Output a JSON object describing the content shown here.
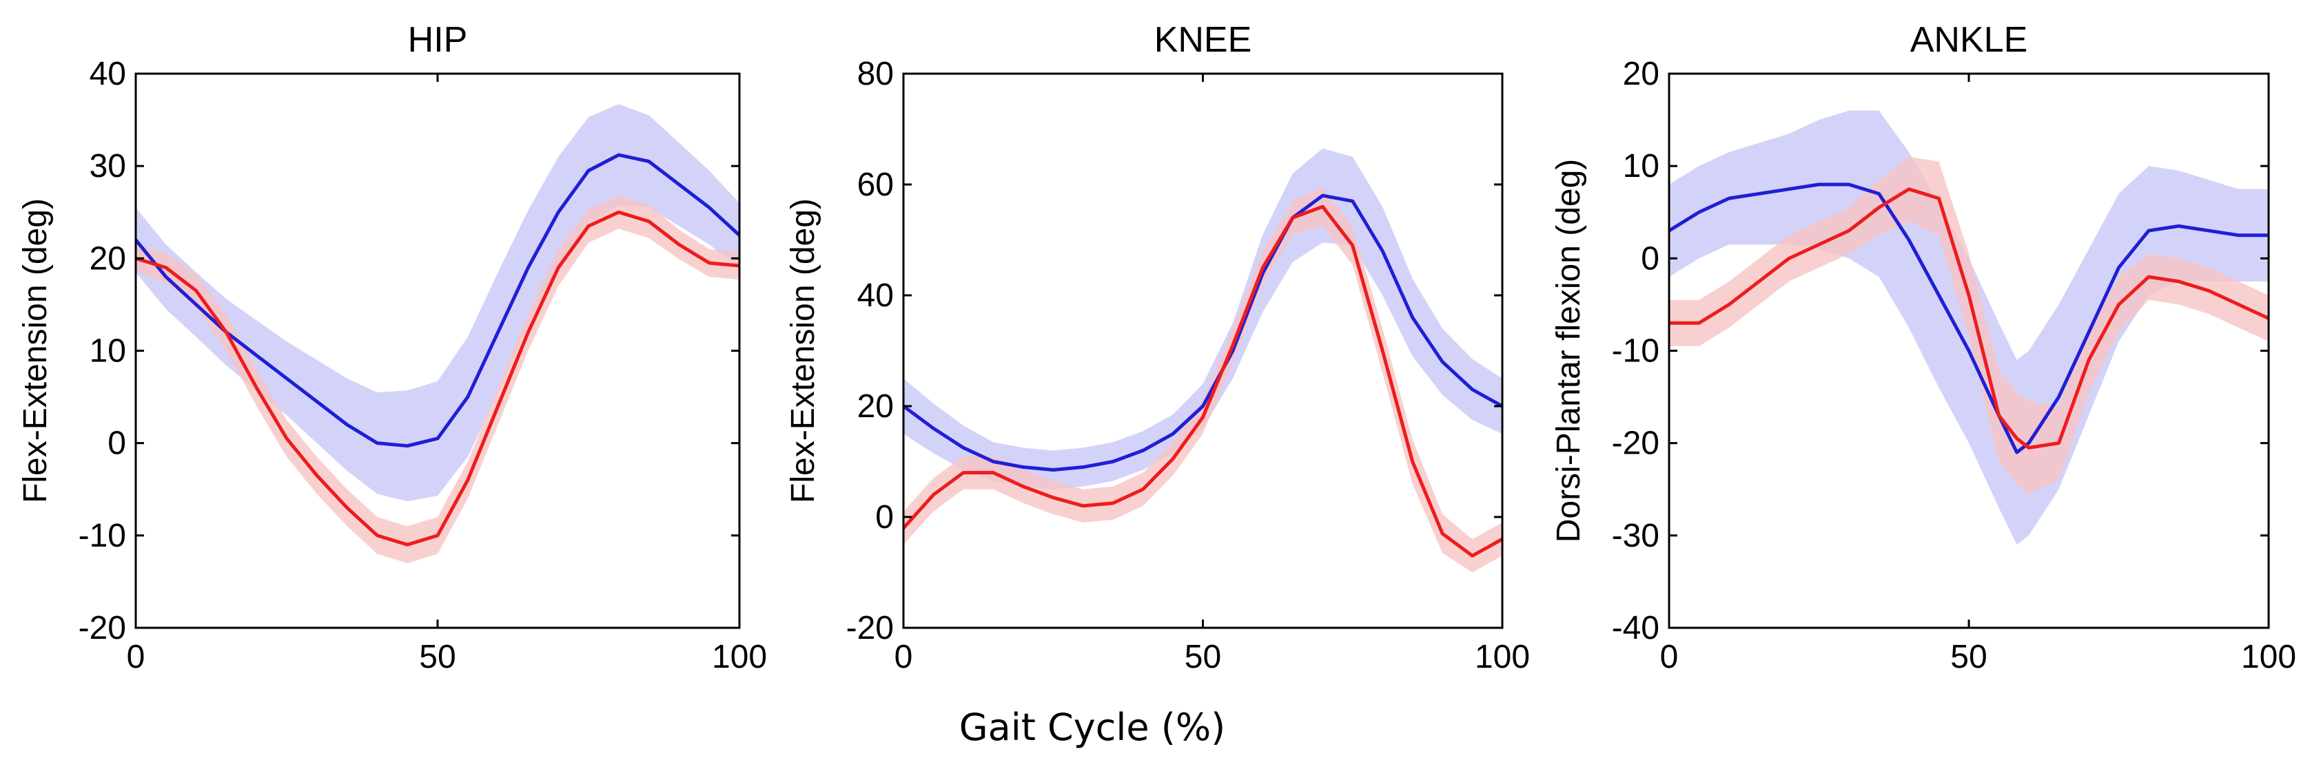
{
  "figure": {
    "shared_xlabel": "Gait Cycle (%)"
  },
  "colors": {
    "blue_line": "#1f1fd6",
    "blue_band": "#c8c8f7",
    "red_line": "#ee1c1c",
    "red_band": "#f7c4c4"
  },
  "chart_data": [
    {
      "type": "line",
      "title": "HIP",
      "xlabel": "",
      "ylabel": "Flex-Extension (deg)",
      "xlim": [
        0,
        100
      ],
      "ylim": [
        -20,
        40
      ],
      "xticks": [
        0,
        50,
        100
      ],
      "yticks": [
        -20,
        -10,
        0,
        10,
        20,
        30,
        40
      ],
      "x": [
        0,
        5,
        10,
        15,
        20,
        25,
        30,
        35,
        40,
        45,
        50,
        55,
        60,
        65,
        70,
        75,
        80,
        85,
        90,
        95,
        100
      ],
      "series": [
        {
          "name": "blue",
          "color_key": "blue",
          "values": [
            22,
            18,
            15,
            12,
            9.5,
            7,
            4.5,
            2,
            0,
            -0.3,
            0.5,
            5,
            12,
            19,
            25,
            29.5,
            31.2,
            30.5,
            28,
            25.5,
            22.5
          ],
          "sd": [
            3.5,
            3.5,
            3.5,
            3.6,
            3.8,
            4,
            4.5,
            5,
            5.5,
            6,
            6.2,
            6.5,
            6.5,
            6.2,
            6,
            5.8,
            5.5,
            5,
            4.5,
            4,
            3.5
          ]
        },
        {
          "name": "red",
          "color_key": "red",
          "values": [
            20,
            19,
            16.5,
            12,
            6,
            0.5,
            -3.5,
            -7,
            -10,
            -11,
            -10,
            -4,
            4,
            12,
            19,
            23.5,
            25,
            24,
            21.5,
            19.5,
            19.2
          ],
          "sd": [
            1.5,
            1.6,
            1.8,
            2,
            2,
            2,
            2,
            2,
            2,
            2,
            2,
            2,
            2,
            2,
            2,
            1.8,
            1.8,
            1.8,
            1.6,
            1.5,
            1.5
          ]
        }
      ]
    },
    {
      "type": "line",
      "title": "KNEE",
      "xlabel": "",
      "ylabel": "Flex-Extension (deg)",
      "xlim": [
        0,
        100
      ],
      "ylim": [
        -20,
        80
      ],
      "xticks": [
        0,
        50,
        100
      ],
      "yticks": [
        -20,
        0,
        20,
        40,
        60,
        80
      ],
      "x": [
        0,
        5,
        10,
        15,
        20,
        25,
        30,
        35,
        40,
        45,
        50,
        55,
        60,
        65,
        70,
        75,
        80,
        85,
        90,
        95,
        100
      ],
      "series": [
        {
          "name": "blue",
          "color_key": "blue",
          "values": [
            20,
            16,
            12.5,
            10,
            9,
            8.5,
            9,
            10,
            12,
            15,
            20,
            30,
            44,
            54,
            58,
            57,
            48,
            36,
            28,
            23,
            20
          ],
          "sd": [
            5,
            4.5,
            4,
            3.5,
            3.5,
            3.5,
            3.5,
            3.5,
            3.5,
            3.5,
            4,
            5,
            7,
            8,
            8.5,
            8,
            8,
            7,
            6,
            5.5,
            5
          ]
        },
        {
          "name": "red",
          "color_key": "red",
          "values": [
            -2,
            4,
            8,
            8,
            5.5,
            3.5,
            2,
            2.5,
            5,
            10.5,
            18,
            31,
            45,
            54,
            56,
            49,
            30,
            10,
            -3,
            -7,
            -4
          ],
          "sd": [
            3,
            3,
            3,
            3,
            3,
            3,
            3,
            3,
            3,
            3,
            3,
            3,
            3,
            3,
            3.5,
            3.5,
            4,
            4,
            3.5,
            3,
            3
          ]
        }
      ]
    },
    {
      "type": "line",
      "title": "ANKLE",
      "xlabel": "",
      "ylabel": "Dorsi-Plantar flexion (deg)",
      "xlim": [
        0,
        100
      ],
      "ylim": [
        -40,
        20
      ],
      "xticks": [
        0,
        50,
        100
      ],
      "yticks": [
        -40,
        -30,
        -20,
        -10,
        0,
        10,
        20
      ],
      "x": [
        0,
        5,
        10,
        15,
        20,
        25,
        30,
        35,
        40,
        45,
        50,
        55,
        58,
        60,
        65,
        70,
        75,
        80,
        85,
        90,
        95,
        100
      ],
      "series": [
        {
          "name": "blue",
          "color_key": "blue",
          "values": [
            3,
            5,
            6.5,
            7,
            7.5,
            8,
            8,
            7,
            2,
            -4,
            -10,
            -17,
            -21,
            -20,
            -15,
            -8,
            -1,
            3,
            3.5,
            3,
            2.5,
            2.5
          ],
          "sd": [
            5,
            5,
            5,
            5.5,
            6,
            7,
            8,
            9,
            9.5,
            10,
            10,
            10,
            10,
            10,
            10,
            9,
            8,
            7,
            6,
            5.5,
            5,
            5
          ]
        },
        {
          "name": "red",
          "color_key": "red",
          "values": [
            -7,
            -7,
            -5,
            -2.5,
            0,
            1.5,
            3,
            5.5,
            7.5,
            6.5,
            -4,
            -17,
            -19.5,
            -20.5,
            -20,
            -11,
            -5,
            -2,
            -2.5,
            -3.5,
            -5,
            -6.5
          ],
          "sd": [
            2.5,
            2.5,
            2.5,
            2.5,
            2.5,
            2.5,
            2.5,
            3,
            3.5,
            4,
            4.5,
            5,
            5,
            5,
            4,
            3.5,
            3,
            2.5,
            2.5,
            2.5,
            2.5,
            2.5
          ]
        }
      ]
    }
  ]
}
